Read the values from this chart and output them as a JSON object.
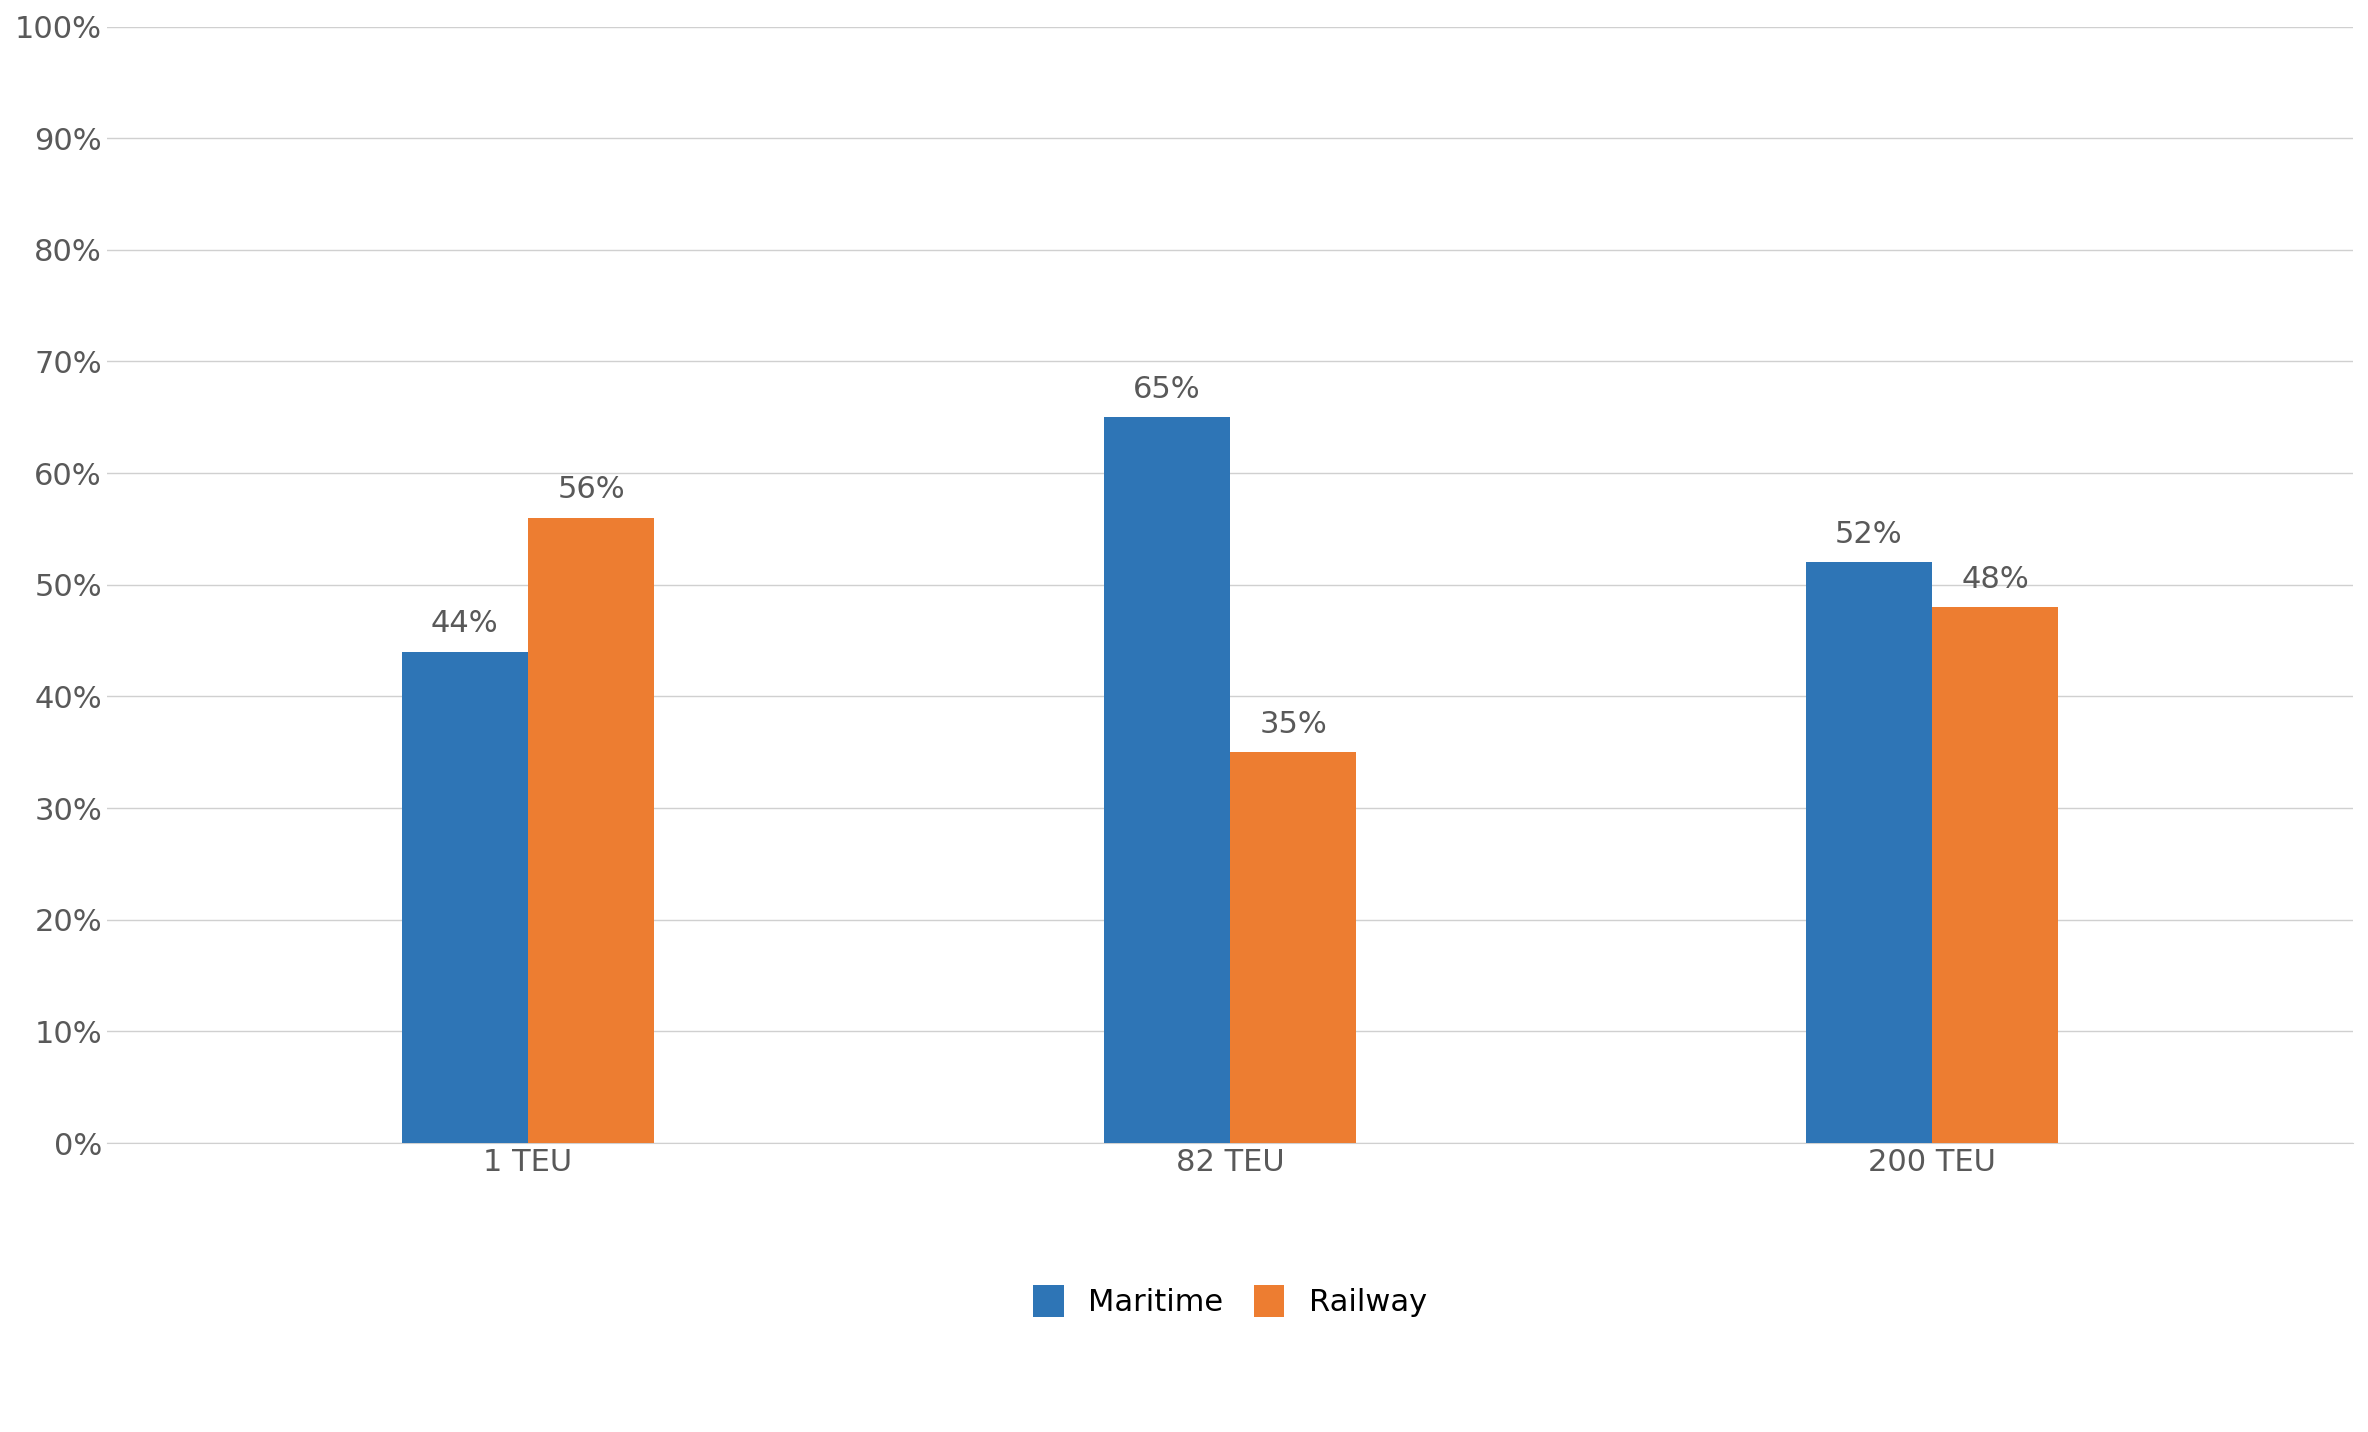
{
  "categories": [
    "1 TEU",
    "82 TEU",
    "200 TEU"
  ],
  "maritime_values": [
    0.44,
    0.65,
    0.52
  ],
  "railway_values": [
    0.56,
    0.35,
    0.48
  ],
  "maritime_labels": [
    "44%",
    "65%",
    "52%"
  ],
  "railway_labels": [
    "56%",
    "35%",
    "48%"
  ],
  "maritime_color": "#2E75B6",
  "railway_color": "#ED7D31",
  "ylim": [
    0,
    1.0
  ],
  "yticks": [
    0.0,
    0.1,
    0.2,
    0.3,
    0.4,
    0.5,
    0.6,
    0.7,
    0.8,
    0.9,
    1.0
  ],
  "ytick_labels": [
    "0%",
    "10%",
    "20%",
    "30%",
    "40%",
    "50%",
    "60%",
    "70%",
    "80%",
    "90%",
    "100%"
  ],
  "legend_labels": [
    "Maritime",
    "Railway"
  ],
  "bar_width": 0.18,
  "background_color": "#ffffff",
  "grid_color": "#d0d0d0",
  "tick_fontsize": 22,
  "legend_fontsize": 22,
  "annotation_fontsize": 22,
  "annotation_color": "#595959"
}
